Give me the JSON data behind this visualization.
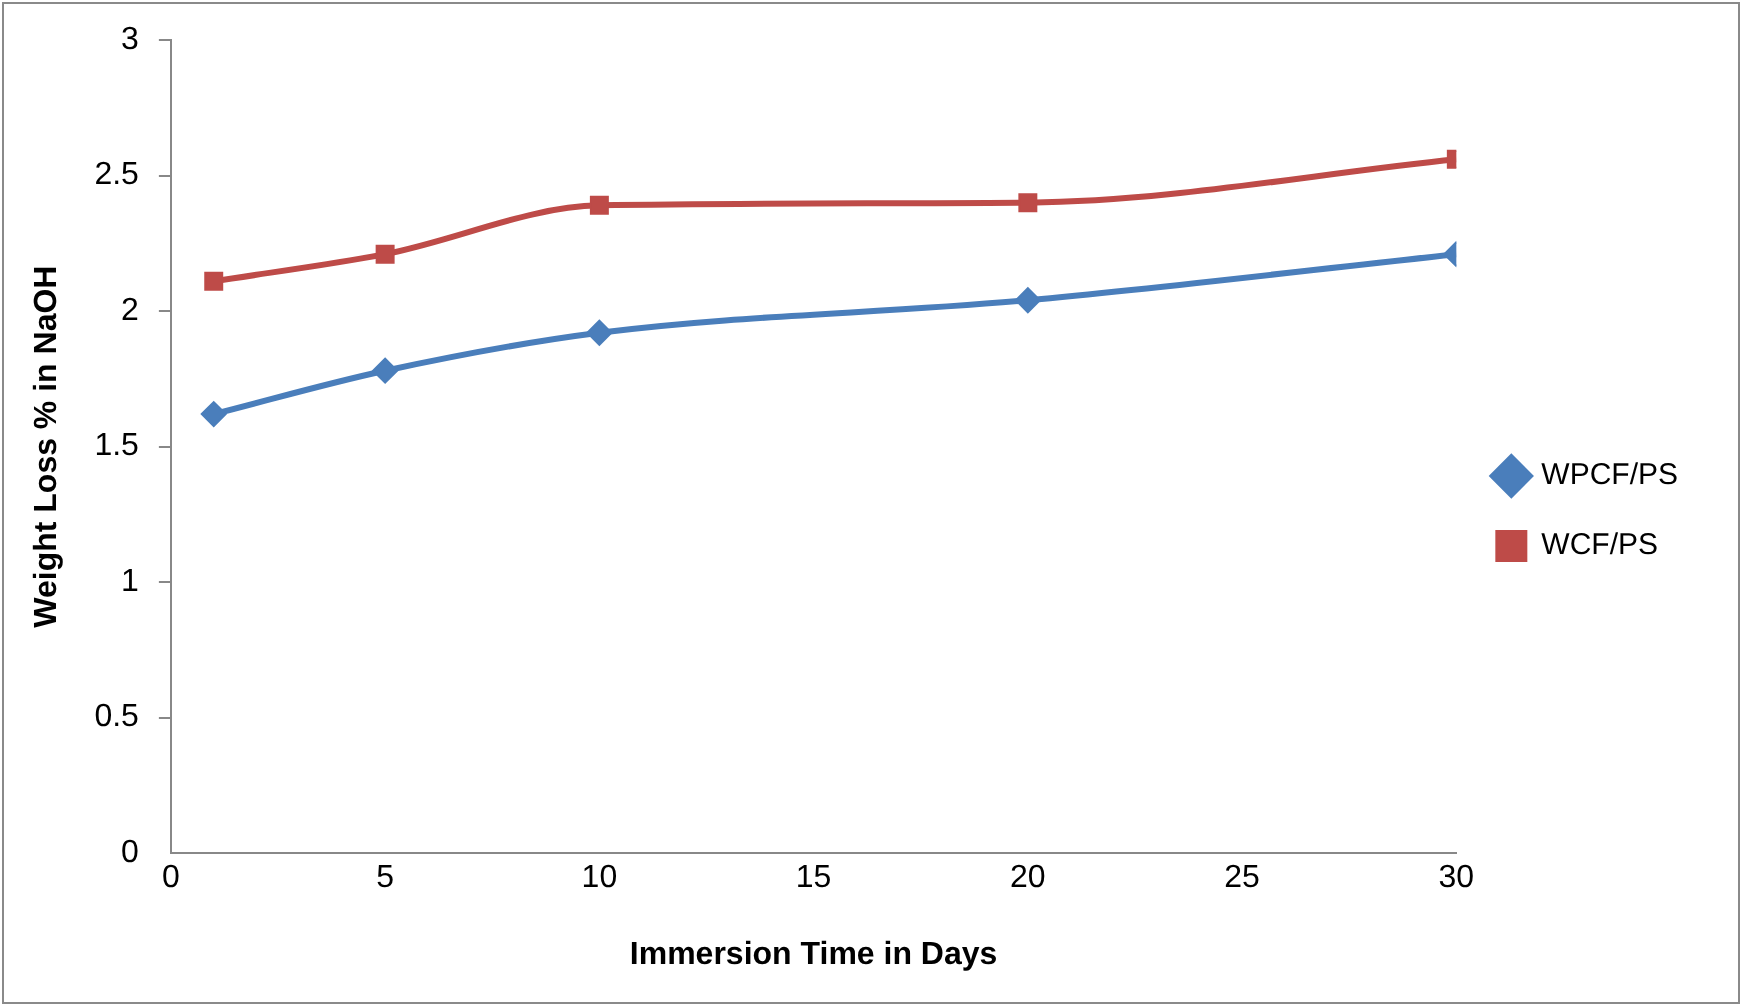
{
  "chart_data": {
    "type": "line",
    "xlabel": "Immersion Time in Days",
    "ylabel": "Weight Loss % in NaOH",
    "x": [
      1,
      5,
      10,
      20,
      30
    ],
    "series": [
      {
        "name": "WPCF/PS",
        "color": "#4a7ebb",
        "values": [
          1.62,
          1.78,
          1.92,
          2.04,
          2.21
        ],
        "marker": "diamond"
      },
      {
        "name": "WCF/PS",
        "color": "#be4b48",
        "values": [
          2.11,
          2.21,
          2.39,
          2.4,
          2.56
        ],
        "marker": "square"
      }
    ],
    "xlim": [
      0,
      30
    ],
    "xticks": [
      0,
      5,
      10,
      15,
      20,
      25,
      30
    ],
    "ylim": [
      0,
      3
    ],
    "yticks": [
      0,
      0.5,
      1,
      1.5,
      2,
      2.5,
      3
    ],
    "grid": false,
    "legend": "right"
  }
}
